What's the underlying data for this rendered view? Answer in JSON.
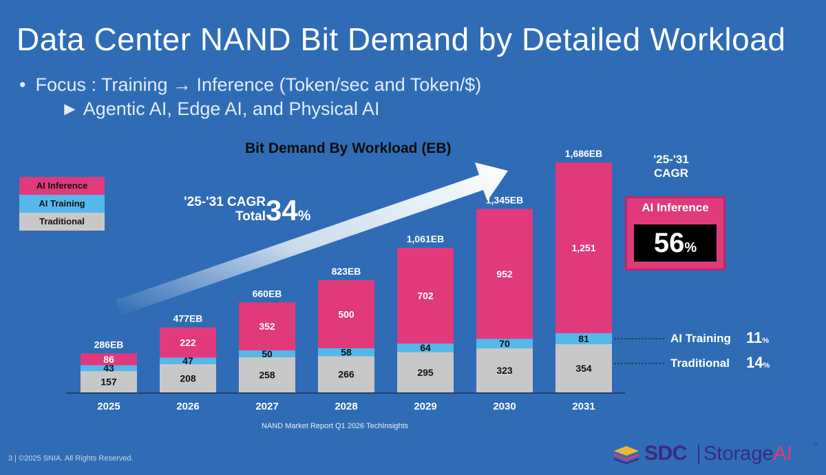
{
  "slide": {
    "title": "Data Center NAND Bit Demand by Detailed Workload",
    "bullet_marker": "•",
    "bullet_1": "Focus :  Training → Inference (Token/sec and Token/$)",
    "bullet_2": "► Agentic AI, Edge AI, and Physical AI",
    "source_note": "NAND Market Report Q1 2026   TechInsights",
    "footer": "3 | ©2025 SNIA. All Rights Reserved."
  },
  "colors": {
    "background": "#2f6cb5",
    "ai_inference": "#e03a7c",
    "ai_training": "#55b8ea",
    "traditional": "#c8c8c8"
  },
  "annotations": {
    "cagr_total_line1": "'25-'31 CAGR",
    "cagr_total_line2": "Total",
    "cagr_total_value": "34",
    "cagr_box_line1": "'25-'31",
    "cagr_box_line2": "CAGR",
    "inference_box_label": "AI Inference",
    "inference_cagr_value": "56",
    "training_label": "AI Training",
    "training_cagr_value": "11",
    "traditional_label": "Traditional",
    "traditional_cagr_value": "14",
    "percent_sign": "%",
    "trend_arrow": "arrow-up-right"
  },
  "logo": {
    "brand": "SDC",
    "product_prefix": "Storage",
    "product_suffix": "AI",
    "trademark": "™"
  },
  "chart_data": {
    "type": "bar",
    "stacked": true,
    "title": "Bit Demand By Workload (EB)",
    "categories": [
      "2025",
      "2026",
      "2027",
      "2028",
      "2029",
      "2030",
      "2031"
    ],
    "series": [
      {
        "name": "Traditional",
        "values": [
          157,
          208,
          258,
          266,
          295,
          323,
          354
        ]
      },
      {
        "name": "AI Training",
        "values": [
          43,
          47,
          50,
          58,
          64,
          70,
          81
        ]
      },
      {
        "name": "AI Inference",
        "values": [
          86,
          222,
          352,
          500,
          702,
          952,
          1251
        ]
      }
    ],
    "totals": [
      "286EB",
      "477EB",
      "660EB",
      "823EB",
      "1,061EB",
      "1,345EB",
      "1,686EB"
    ],
    "value_labels": {
      "Traditional": [
        "157",
        "208",
        "258",
        "266",
        "295",
        "323",
        "354"
      ],
      "AI Training": [
        "43",
        "47",
        "50",
        "58",
        "64",
        "70",
        "81"
      ],
      "AI Inference": [
        "86",
        "222",
        "352",
        "500",
        "702",
        "952",
        "1,251"
      ]
    },
    "legend": [
      "AI Inference",
      "AI Training",
      "Traditional"
    ],
    "legend_position": "left",
    "grid": false,
    "ylim": [
      0,
      1686
    ]
  }
}
